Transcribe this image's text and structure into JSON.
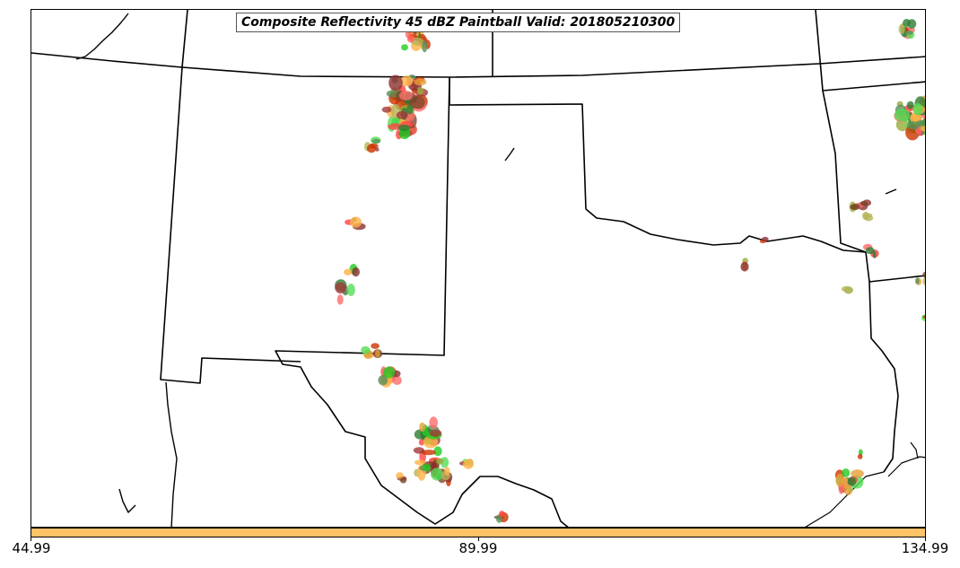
{
  "title": "Composite Reflectivity 45 dBZ Paintball Valid: 201805210300",
  "colorbar": {
    "color": "#ffc266",
    "ticks": [
      "44.99",
      "89.99",
      "134.99"
    ]
  },
  "paintball_palette": [
    "#2e7d32",
    "#5a8f5a",
    "#8b2f2f",
    "#a33a3a",
    "#ff4444",
    "#ff6a6a",
    "#e6a03a",
    "#ffb347",
    "#9aab3a",
    "#b5b55a",
    "#22cc22",
    "#55dd55",
    "#cc3300",
    "#7a4a2a"
  ]
}
